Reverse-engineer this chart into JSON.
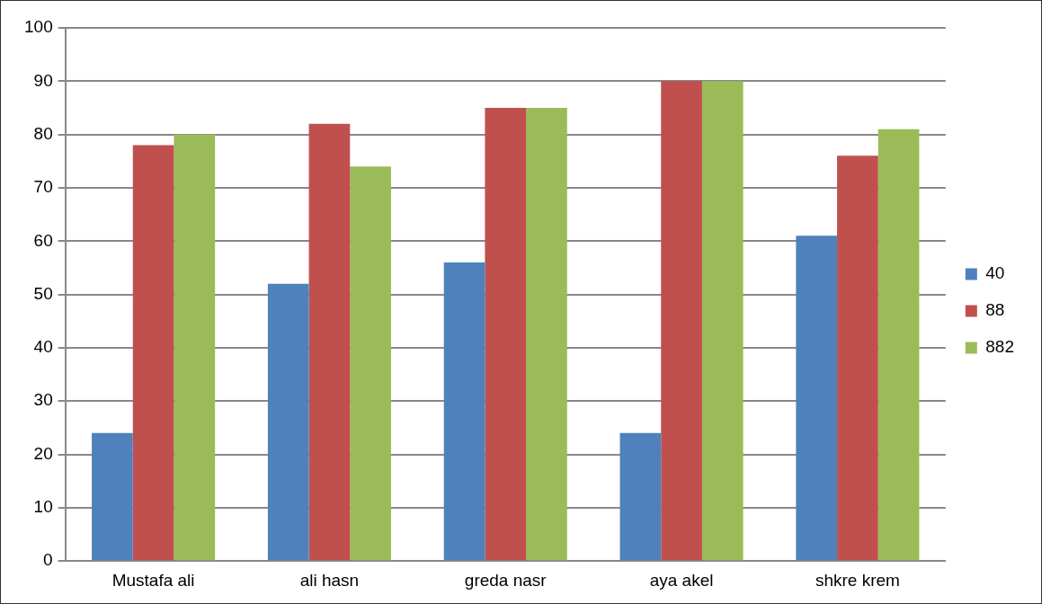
{
  "chart_data": {
    "type": "bar",
    "categories": [
      "Mustafa ali",
      "ali hasn",
      "greda nasr",
      "aya akel",
      "shkre krem"
    ],
    "series": [
      {
        "name": "40",
        "color": "#4f81bd",
        "values": [
          24,
          52,
          56,
          24,
          61
        ]
      },
      {
        "name": "88",
        "color": "#c0504d",
        "values": [
          78,
          82,
          85,
          90,
          76
        ]
      },
      {
        "name": "882",
        "color": "#9bbb59",
        "values": [
          80,
          74,
          85,
          90,
          81
        ]
      }
    ],
    "ylim": [
      0,
      100
    ],
    "yticks": [
      0,
      10,
      20,
      30,
      40,
      50,
      60,
      70,
      80,
      90,
      100
    ],
    "grid": "y",
    "legend": "right"
  }
}
